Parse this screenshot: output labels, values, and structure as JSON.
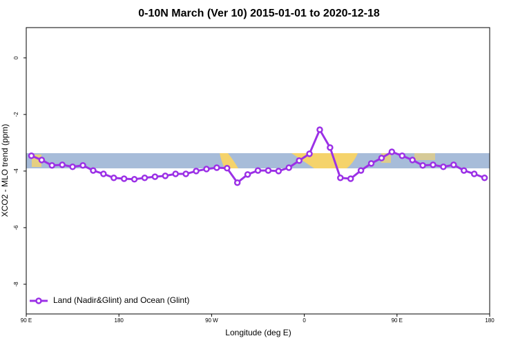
{
  "chart_data": {
    "type": "line",
    "title": "0-10N March (Ver 10)   2015-01-01 to 2020-12-18",
    "x_label": "Longitude (deg E)",
    "y_label": "XCO2 - MLO trend (ppm)",
    "xlim": [
      90,
      540
    ],
    "ylim": [
      -9.05,
      1.07
    ],
    "xticks": [
      {
        "value": 90,
        "label": "90 E"
      },
      180,
      {
        "value": 270,
        "label": "90 W"
      },
      {
        "value": 360,
        "label": "0"
      },
      {
        "value": 450,
        "label": "90 E"
      },
      {
        "value": 540,
        "label": "180"
      }
    ],
    "yticks": [
      -8,
      -6,
      -4,
      -2,
      0
    ],
    "legend": "bottom-left",
    "x": [
      95,
      105,
      115,
      125,
      135,
      145,
      155,
      165,
      175,
      185,
      195,
      205,
      215,
      225,
      235,
      245,
      255,
      265,
      275,
      285,
      295,
      305,
      315,
      325,
      335,
      345,
      355,
      365,
      375,
      385,
      395,
      405,
      415,
      425,
      435,
      445,
      455,
      465,
      475,
      485,
      495,
      505,
      515,
      525,
      535
    ],
    "series": [
      {
        "name": "Land (Nadir&Glint) and Ocean (Glint)",
        "color": "#9b30e6",
        "values": [
          -3.46,
          -3.61,
          -3.8,
          -3.78,
          -3.85,
          -3.8,
          -3.98,
          -4.1,
          -4.24,
          -4.27,
          -4.29,
          -4.24,
          -4.2,
          -4.17,
          -4.1,
          -4.1,
          -4.0,
          -3.93,
          -3.88,
          -3.9,
          -4.41,
          -4.12,
          -3.98,
          -3.98,
          -4.0,
          -3.88,
          -3.63,
          -3.39,
          -2.54,
          -3.17,
          -4.24,
          -4.27,
          -3.98,
          -3.73,
          -3.54,
          -3.32,
          -3.46,
          -3.61,
          -3.8,
          -3.78,
          -3.85,
          -3.78,
          -3.98,
          -4.1,
          -4.24
        ]
      }
    ]
  }
}
